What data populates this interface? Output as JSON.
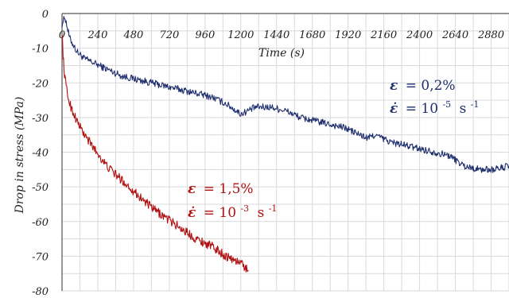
{
  "chart_data": {
    "type": "line",
    "xlabel": "Time (s)",
    "ylabel": "Drop in stress (MPa)",
    "xlim": [
      0,
      3000
    ],
    "ylim": [
      -80,
      0
    ],
    "x_ticks": [
      0,
      240,
      480,
      720,
      960,
      1200,
      1440,
      1680,
      1920,
      2160,
      2400,
      2640,
      2880
    ],
    "y_ticks": [
      0,
      -10,
      -20,
      -30,
      -40,
      -50,
      -60,
      -70,
      -80
    ],
    "x_tick_labels": [
      "0",
      "240",
      "480",
      "720",
      "960",
      "1200",
      "1440",
      "1680",
      "1920",
      "2160",
      "2400",
      "2640",
      "2880"
    ],
    "y_tick_labels": [
      "0",
      "-10",
      "-20",
      "-30",
      "-40",
      "-50",
      "-60",
      "-70",
      "-80"
    ],
    "grid": true,
    "series": [
      {
        "color": "#1f2f6e",
        "annotation": {
          "strain_symbol": "ε",
          "strain_value": "= 0,2%",
          "rate_symbol": "ε̇",
          "rate_value": "= 10",
          "rate_exp": "-5",
          "rate_unit": "s",
          "rate_unit_exp": "-1"
        },
        "x": [
          0,
          20,
          50,
          100,
          150,
          200,
          300,
          400,
          500,
          600,
          700,
          800,
          900,
          1000,
          1100,
          1200,
          1250,
          1300,
          1400,
          1500,
          1600,
          1700,
          1800,
          1900,
          2000,
          2050,
          2100,
          2150,
          2200,
          2300,
          2400,
          2500,
          2600,
          2700,
          2800,
          2900,
          3000
        ],
        "y": [
          -3,
          -1,
          -7,
          -11,
          -13,
          -14,
          -16,
          -18,
          -19,
          -20,
          -21,
          -22,
          -23,
          -24,
          -26,
          -29,
          -28,
          -27,
          -27,
          -28,
          -30,
          -31,
          -32,
          -33,
          -35,
          -36,
          -35,
          -36,
          -37,
          -38,
          -39,
          -40,
          -41,
          -44,
          -45,
          -45,
          -44
        ]
      },
      {
        "color": "#b01010",
        "annotation": {
          "strain_symbol": "ε",
          "strain_value": "= 1,5%",
          "rate_symbol": "ε̇",
          "rate_value": "= 10",
          "rate_exp": "-3",
          "rate_unit": "s",
          "rate_unit_exp": "-1"
        },
        "x": [
          0,
          5,
          10,
          20,
          40,
          60,
          100,
          150,
          200,
          250,
          300,
          400,
          500,
          600,
          700,
          800,
          900,
          1000,
          1100,
          1200,
          1250
        ],
        "y": [
          -5,
          -10,
          -14,
          -19,
          -24,
          -27,
          -31,
          -35,
          -38,
          -41,
          -44,
          -48,
          -52,
          -56,
          -59,
          -62,
          -65,
          -67,
          -70,
          -72,
          -74
        ]
      }
    ]
  }
}
